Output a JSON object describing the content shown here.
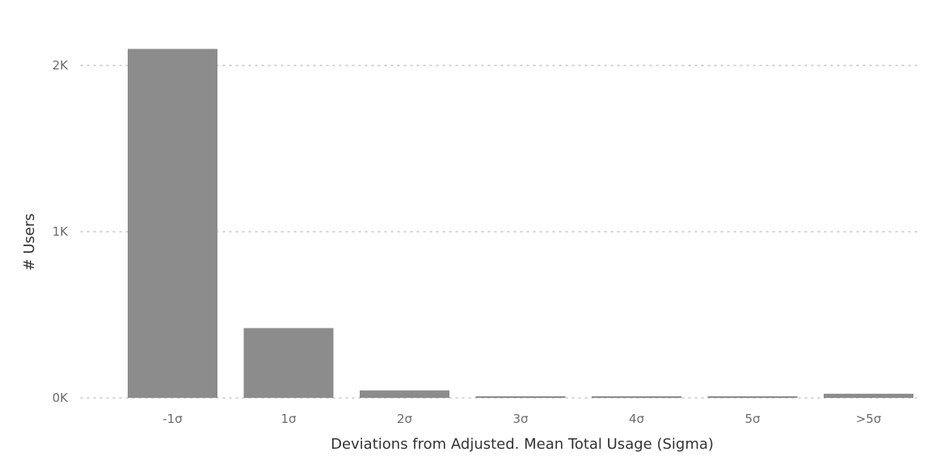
{
  "chart_data": {
    "type": "bar",
    "categories": [
      "-1σ",
      "1σ",
      "2σ",
      "3σ",
      "4σ",
      "5σ",
      ">5σ"
    ],
    "values": [
      2100,
      420,
      45,
      8,
      8,
      8,
      25
    ],
    "xlabel": "Deviations from Adjusted. Mean Total Usage (Sigma)",
    "ylabel": "# Users",
    "ylim": [
      0,
      2200
    ],
    "yticks": [
      {
        "value": 0,
        "label": "0K"
      },
      {
        "value": 1000,
        "label": "1K"
      },
      {
        "value": 2000,
        "label": "2K"
      }
    ],
    "grid": true,
    "bar_color": "#8c8c8c",
    "grid_color": "#c8c8c8"
  }
}
